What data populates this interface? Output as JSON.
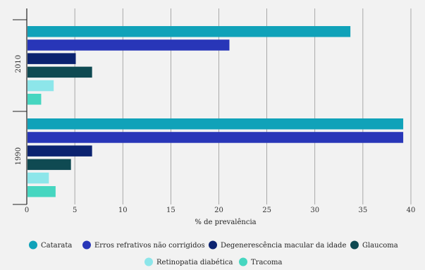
{
  "chart_data": {
    "type": "bar",
    "orientation": "horizontal",
    "categories": [
      "2010",
      "1990"
    ],
    "series": [
      {
        "name": "Catarata",
        "color": "#10a2b9",
        "values": [
          33.7,
          39.2
        ]
      },
      {
        "name": "Erros refrativos não corrigidos",
        "color": "#2836b8",
        "values": [
          21.1,
          39.2
        ]
      },
      {
        "name": "Degenerescência macular da idade",
        "color": "#0c2370",
        "values": [
          5.1,
          6.8
        ]
      },
      {
        "name": "Glaucoma",
        "color": "#0f4a52",
        "values": [
          6.8,
          4.6
        ]
      },
      {
        "name": "Retinopatia diabética",
        "color": "#8de6ea",
        "values": [
          2.8,
          2.3
        ]
      },
      {
        "name": "Tracoma",
        "color": "#46d6c0",
        "values": [
          1.5,
          3.0
        ]
      }
    ],
    "xlabel": "% de prevalência",
    "ylabel": "",
    "xlim": [
      0,
      40
    ],
    "x_ticks": [
      0,
      5,
      10,
      15,
      20,
      25,
      30,
      35,
      40
    ],
    "grid": true,
    "legend_position": "bottom"
  }
}
